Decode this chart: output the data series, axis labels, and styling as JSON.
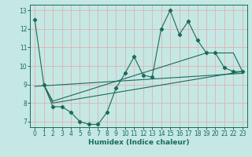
{
  "xlabel": "Humidex (Indice chaleur)",
  "xlim": [
    -0.5,
    23.5
  ],
  "ylim": [
    6.7,
    13.3
  ],
  "xticks": [
    0,
    1,
    2,
    3,
    4,
    5,
    6,
    7,
    8,
    9,
    10,
    11,
    12,
    13,
    14,
    15,
    16,
    17,
    18,
    19,
    20,
    21,
    22,
    23
  ],
  "yticks": [
    7,
    8,
    9,
    10,
    11,
    12,
    13
  ],
  "bg_color": "#c5e8e4",
  "line_color": "#1a6b5a",
  "grid_color": "#ddb8b8",
  "line1_x": [
    0,
    1,
    2,
    3,
    4,
    5,
    6,
    7,
    8,
    9,
    10,
    11,
    12,
    13,
    14,
    15,
    16,
    17,
    18,
    19,
    20,
    21,
    22,
    23
  ],
  "line1_y": [
    12.5,
    9.0,
    7.8,
    7.8,
    7.5,
    7.0,
    6.85,
    6.85,
    7.5,
    8.8,
    9.6,
    10.5,
    9.5,
    9.4,
    12.0,
    13.0,
    11.7,
    12.4,
    11.4,
    10.7,
    10.7,
    9.9,
    9.7,
    9.7
  ],
  "line2_x": [
    1,
    2,
    23
  ],
  "line2_y": [
    9.0,
    8.0,
    9.7
  ],
  "line3_x": [
    1,
    2,
    19,
    22,
    23
  ],
  "line3_y": [
    9.0,
    8.1,
    10.7,
    10.7,
    9.7
  ],
  "line4_x": [
    0,
    23
  ],
  "line4_y": [
    8.9,
    9.6
  ]
}
